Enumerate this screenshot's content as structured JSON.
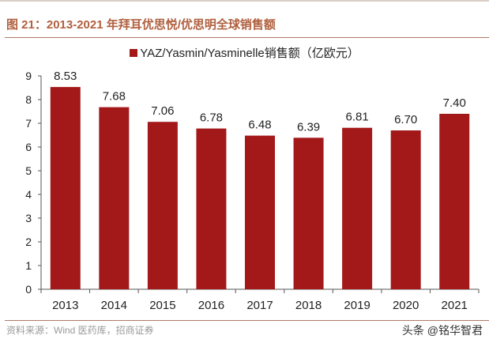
{
  "header": {
    "title": "图 21：2013-2021 年拜耳优思悦/优思明全球销售额"
  },
  "footer": {
    "source": "资料来源：Wind 医药库，招商证券",
    "watermark": "头条 @铭华智君"
  },
  "chart_data": {
    "type": "bar",
    "categories": [
      "2013",
      "2014",
      "2015",
      "2016",
      "2017",
      "2018",
      "2019",
      "2020",
      "2021"
    ],
    "series": [
      {
        "name": "YAZ/Yasmin/Yasminelle销售额（亿欧元）",
        "values": [
          8.53,
          7.68,
          7.06,
          6.78,
          6.48,
          6.39,
          6.81,
          6.7,
          7.4
        ],
        "color": "#a31919"
      }
    ],
    "data_labels": [
      "8.53",
      "7.68",
      "7.06",
      "6.78",
      "6.48",
      "6.39",
      "6.81",
      "6.70",
      "7.40"
    ],
    "ylim": [
      0,
      9
    ],
    "yticks": [
      0,
      1,
      2,
      3,
      4,
      5,
      6,
      7,
      8,
      9
    ],
    "grid": false,
    "legend": "top-center"
  }
}
